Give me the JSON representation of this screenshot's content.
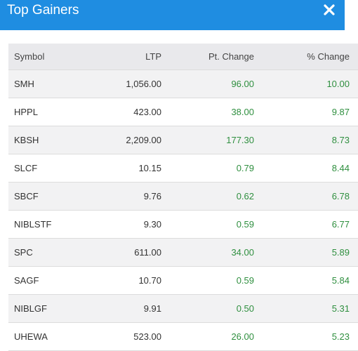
{
  "dialog": {
    "title": "Top Gainers",
    "close_icon": "close-icon"
  },
  "table": {
    "columns": [
      "Symbol",
      "LTP",
      "Pt. Change",
      "% Change"
    ],
    "rows": [
      {
        "symbol": "SMH",
        "ltp": "1,056.00",
        "pt_change": "96.00",
        "pct_change": "10.00"
      },
      {
        "symbol": "HPPL",
        "ltp": "423.00",
        "pt_change": "38.00",
        "pct_change": "9.87"
      },
      {
        "symbol": "KBSH",
        "ltp": "2,209.00",
        "pt_change": "177.30",
        "pct_change": "8.73"
      },
      {
        "symbol": "SLCF",
        "ltp": "10.15",
        "pt_change": "0.79",
        "pct_change": "8.44"
      },
      {
        "symbol": "SBCF",
        "ltp": "9.76",
        "pt_change": "0.62",
        "pct_change": "6.78"
      },
      {
        "symbol": "NIBLSTF",
        "ltp": "9.30",
        "pt_change": "0.59",
        "pct_change": "6.77"
      },
      {
        "symbol": "SPC",
        "ltp": "611.00",
        "pt_change": "34.00",
        "pct_change": "5.89"
      },
      {
        "symbol": "SAGF",
        "ltp": "10.70",
        "pt_change": "0.59",
        "pct_change": "5.84"
      },
      {
        "symbol": "NIBLGF",
        "ltp": "9.91",
        "pt_change": "0.50",
        "pct_change": "5.31"
      },
      {
        "symbol": "UHEWA",
        "ltp": "523.00",
        "pt_change": "26.00",
        "pct_change": "5.23"
      }
    ]
  },
  "colors": {
    "header_bg": "#1f8de1",
    "positive": "#2f8f3f"
  }
}
